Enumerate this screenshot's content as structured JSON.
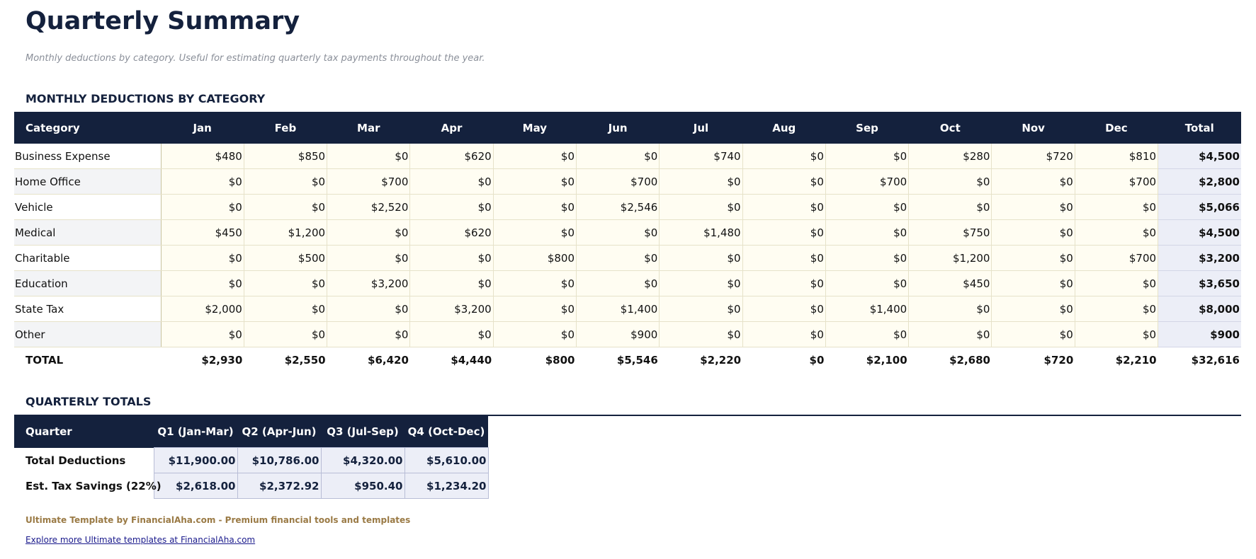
{
  "header": {
    "title": "Quarterly Summary",
    "subtitle": "Monthly deductions by category. Useful for estimating quarterly tax payments throughout the year."
  },
  "monthly": {
    "heading": "MONTHLY DEDUCTIONS BY CATEGORY",
    "columns": [
      "Category",
      "Jan",
      "Feb",
      "Mar",
      "Apr",
      "May",
      "Jun",
      "Jul",
      "Aug",
      "Sep",
      "Oct",
      "Nov",
      "Dec",
      "Total"
    ],
    "rows": [
      [
        "Business Expense",
        "$480",
        "$850",
        "$0",
        "$620",
        "$0",
        "$0",
        "$740",
        "$0",
        "$0",
        "$280",
        "$720",
        "$810",
        "$4,500"
      ],
      [
        "Home Office",
        "$0",
        "$0",
        "$700",
        "$0",
        "$0",
        "$700",
        "$0",
        "$0",
        "$700",
        "$0",
        "$0",
        "$700",
        "$2,800"
      ],
      [
        "Vehicle",
        "$0",
        "$0",
        "$2,520",
        "$0",
        "$0",
        "$2,546",
        "$0",
        "$0",
        "$0",
        "$0",
        "$0",
        "$0",
        "$5,066"
      ],
      [
        "Medical",
        "$450",
        "$1,200",
        "$0",
        "$620",
        "$0",
        "$0",
        "$1,480",
        "$0",
        "$0",
        "$750",
        "$0",
        "$0",
        "$4,500"
      ],
      [
        "Charitable",
        "$0",
        "$500",
        "$0",
        "$0",
        "$800",
        "$0",
        "$0",
        "$0",
        "$0",
        "$1,200",
        "$0",
        "$700",
        "$3,200"
      ],
      [
        "Education",
        "$0",
        "$0",
        "$3,200",
        "$0",
        "$0",
        "$0",
        "$0",
        "$0",
        "$0",
        "$450",
        "$0",
        "$0",
        "$3,650"
      ],
      [
        "State Tax",
        "$2,000",
        "$0",
        "$0",
        "$3,200",
        "$0",
        "$1,400",
        "$0",
        "$0",
        "$1,400",
        "$0",
        "$0",
        "$0",
        "$8,000"
      ],
      [
        "Other",
        "$0",
        "$0",
        "$0",
        "$0",
        "$0",
        "$900",
        "$0",
        "$0",
        "$0",
        "$0",
        "$0",
        "$0",
        "$900"
      ]
    ],
    "total": [
      "TOTAL",
      "$2,930",
      "$2,550",
      "$6,420",
      "$4,440",
      "$800",
      "$5,546",
      "$2,220",
      "$0",
      "$2,100",
      "$2,680",
      "$720",
      "$2,210",
      "$32,616"
    ]
  },
  "quarterly": {
    "heading": "QUARTERLY TOTALS",
    "columns": [
      "Quarter",
      "Q1 (Jan-Mar)",
      "Q2 (Apr-Jun)",
      "Q3 (Jul-Sep)",
      "Q4 (Oct-Dec)"
    ],
    "rows": [
      [
        "Total Deductions",
        "$11,900.00",
        "$10,786.00",
        "$4,320.00",
        "$5,610.00"
      ],
      [
        "Est. Tax Savings (22%)",
        "$2,618.00",
        "$2,372.92",
        "$950.40",
        "$1,234.20"
      ]
    ]
  },
  "footer": {
    "credit": "Ultimate Template by FinancialAha.com - Premium financial tools and templates",
    "link": "Explore more Ultimate templates at FinancialAha.com"
  }
}
